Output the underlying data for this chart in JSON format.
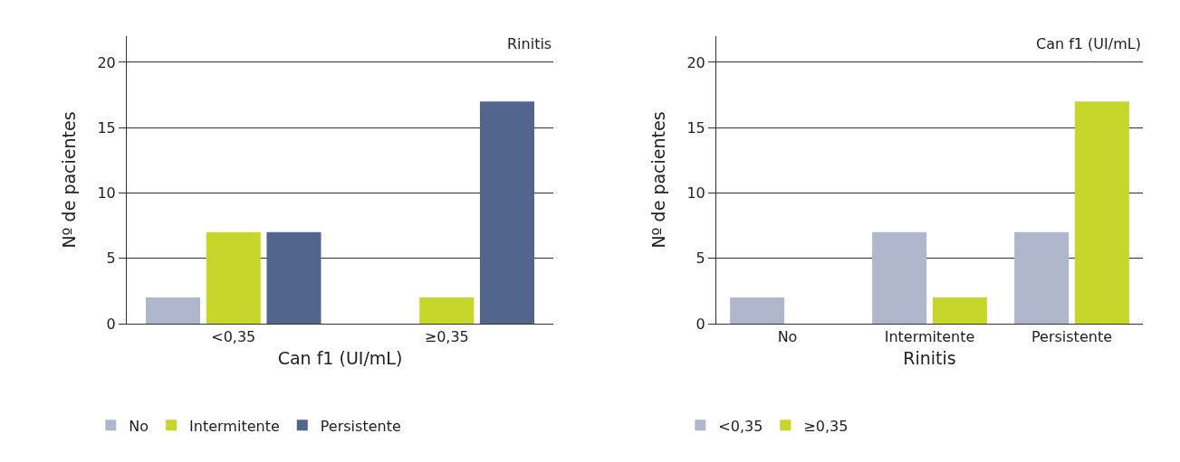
{
  "chart_data": [
    {
      "type": "bar",
      "categories": [
        "<0,35",
        "≥0,35"
      ],
      "xlabel": "Can f1 (UI/mL)",
      "ylabel": "Nº de pacientes",
      "annotations": [
        "Rinitis"
      ],
      "series": [
        {
          "name": "No",
          "color": "#b0b6cc",
          "values": [
            2,
            0
          ]
        },
        {
          "name": "Intermitente",
          "color": "#c6d62b",
          "values": [
            7,
            2
          ]
        },
        {
          "name": "Persistente",
          "color": "#51658d",
          "values": [
            7,
            17
          ]
        }
      ],
      "ylim": [
        0,
        22
      ],
      "yticks": [
        0,
        5,
        10,
        15,
        20
      ],
      "grid": "y",
      "legend": "bottom"
    },
    {
      "type": "bar",
      "categories": [
        "No",
        "Intermitente",
        "Persistente"
      ],
      "xlabel": "Rinitis",
      "ylabel": "Nº de pacientes",
      "annotations": [
        "Can f1 (UI/mL)"
      ],
      "series": [
        {
          "name": "<0,35",
          "color": "#b0b6cc",
          "values": [
            2,
            7,
            7
          ]
        },
        {
          "name": "≥0,35",
          "color": "#c6d62b",
          "values": [
            0,
            2,
            17
          ]
        }
      ],
      "ylim": [
        0,
        22
      ],
      "yticks": [
        0,
        5,
        10,
        15,
        20
      ],
      "grid": "y",
      "legend": "bottom"
    }
  ]
}
